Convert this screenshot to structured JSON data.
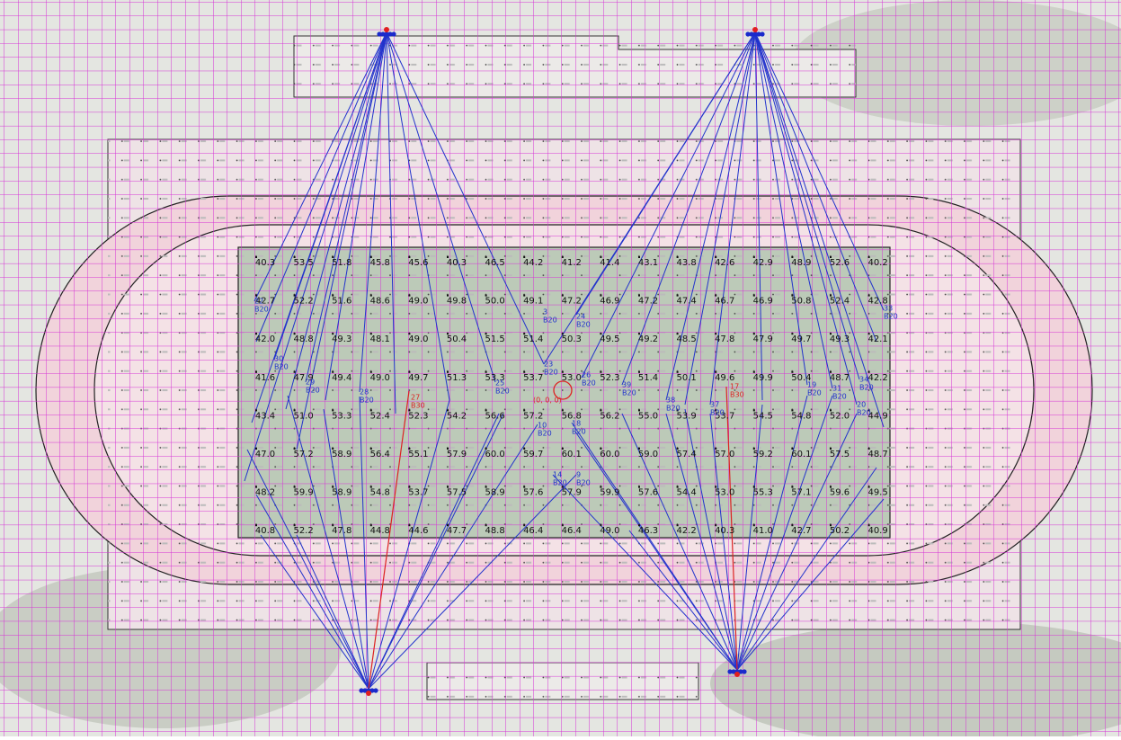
{
  "field": {
    "rows": [
      [
        "40.3",
        "53.5",
        "51.8",
        "45.8",
        "45.6",
        "40.3",
        "46.5",
        "44.2",
        "41.2",
        "41.4",
        "43.1",
        "43.8",
        "42.6",
        "42.9",
        "48.9",
        "52.6",
        "40.2"
      ],
      [
        "42.7",
        "52.2",
        "51.6",
        "48.6",
        "49.0",
        "49.8",
        "50.0",
        "49.1",
        "47.2",
        "46.9",
        "47.2",
        "47.4",
        "46.7",
        "46.9",
        "50.8",
        "52.4",
        "42.8"
      ],
      [
        "42.0",
        "48.8",
        "49.3",
        "48.1",
        "49.0",
        "50.4",
        "51.5",
        "51.4",
        "50.3",
        "49.5",
        "49.2",
        "48.5",
        "47.8",
        "47.9",
        "49.7",
        "49.3",
        "42.1"
      ],
      [
        "41.6",
        "47.9",
        "49.4",
        "49.0",
        "49.7",
        "51.3",
        "53.3",
        "53.7",
        "53.0",
        "52.3",
        "51.4",
        "50.1",
        "49.6",
        "49.9",
        "50.4",
        "48.7",
        "42.2"
      ],
      [
        "43.4",
        "51.0",
        "53.3",
        "52.4",
        "52.3",
        "54.2",
        "56.6",
        "57.2",
        "56.8",
        "56.2",
        "55.0",
        "53.9",
        "53.7",
        "54.5",
        "54.8",
        "52.0",
        "44.9"
      ],
      [
        "47.0",
        "57.2",
        "58.9",
        "56.4",
        "55.1",
        "57.9",
        "60.0",
        "59.7",
        "60.1",
        "60.0",
        "59.0",
        "57.4",
        "57.0",
        "59.2",
        "60.1",
        "57.5",
        "48.7"
      ],
      [
        "48.2",
        "59.9",
        "58.9",
        "54.8",
        "53.7",
        "57.5",
        "58.9",
        "57.6",
        "57.9",
        "59.9",
        "57.6",
        "54.4",
        "53.0",
        "55.3",
        "57.1",
        "59.6",
        "49.5"
      ],
      [
        "40.8",
        "52.2",
        "47.8",
        "44.8",
        "44.6",
        "47.7",
        "48.8",
        "46.4",
        "46.4",
        "49.0",
        "46.3",
        "42.2",
        "40.3",
        "41.0",
        "42.7",
        "50.2",
        "40.9"
      ]
    ]
  },
  "origin_label": "(0, 0, 0)",
  "aim_labels": [
    {
      "id": "22",
      "type": "B20",
      "color": "#2233cc"
    },
    {
      "id": "30",
      "type": "B20",
      "color": "#2233cc"
    },
    {
      "id": "29",
      "type": "B20",
      "color": "#2233cc"
    },
    {
      "id": "28",
      "type": "B20",
      "color": "#2233cc"
    },
    {
      "id": "27",
      "type": "B30",
      "color": "#dd2222"
    },
    {
      "id": "25",
      "type": "B20",
      "color": "#2233cc"
    },
    {
      "id": "23",
      "type": "B20",
      "color": "#2233cc"
    },
    {
      "id": "3",
      "type": "B20",
      "color": "#2233cc"
    },
    {
      "id": "24",
      "type": "B20",
      "color": "#2233cc"
    },
    {
      "id": "26",
      "type": "B20",
      "color": "#2233cc"
    },
    {
      "id": "39",
      "type": "B20",
      "color": "#2233cc"
    },
    {
      "id": "38",
      "type": "B20",
      "color": "#2233cc"
    },
    {
      "id": "37",
      "type": "B20",
      "color": "#2233cc"
    },
    {
      "id": "17",
      "type": "B30",
      "color": "#dd2222"
    },
    {
      "id": "19",
      "type": "B20",
      "color": "#2233cc"
    },
    {
      "id": "31",
      "type": "B20",
      "color": "#2233cc"
    },
    {
      "id": "34",
      "type": "B20",
      "color": "#2233cc"
    },
    {
      "id": "20",
      "type": "B20",
      "color": "#2233cc"
    },
    {
      "id": "33",
      "type": "B20",
      "color": "#2233cc"
    },
    {
      "id": "10",
      "type": "B20",
      "color": "#2233cc"
    },
    {
      "id": "18",
      "type": "B20",
      "color": "#2233cc"
    },
    {
      "id": "14",
      "type": "B20",
      "color": "#2233cc"
    },
    {
      "id": "9",
      "type": "B20",
      "color": "#2233cc"
    }
  ]
}
